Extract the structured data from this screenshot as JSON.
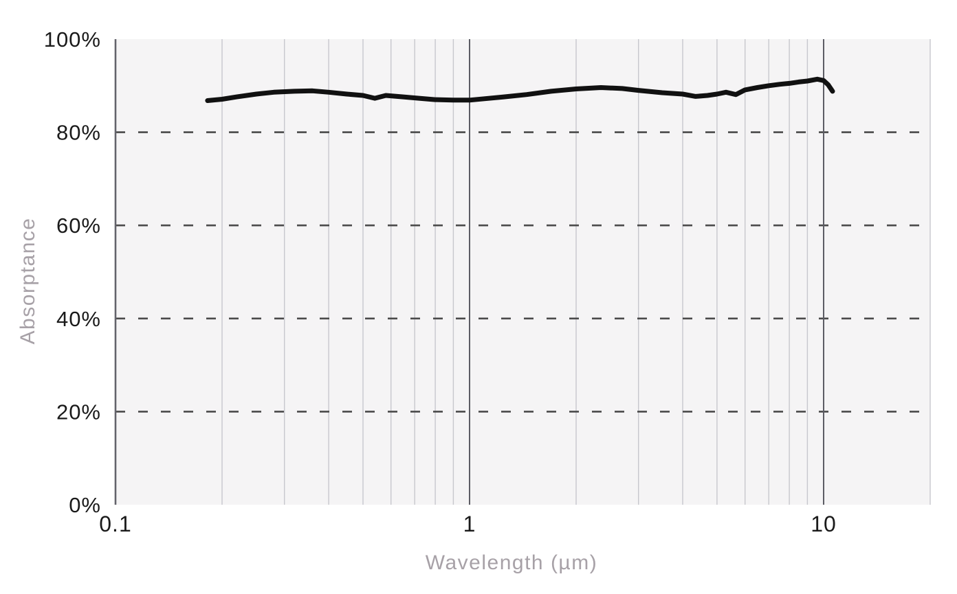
{
  "figure": {
    "background": "#ffffff"
  },
  "chart_data": {
    "type": "line",
    "title": "",
    "xlabel": "Wavelength (µm)",
    "ylabel": "Absorptance",
    "x_scale": "log",
    "xlim": [
      0.1,
      20
    ],
    "ylim": [
      0,
      100
    ],
    "grid": true,
    "legend_position": "none",
    "x_ticks": [
      {
        "value": 0.1,
        "label": "0.1"
      },
      {
        "value": 1,
        "label": "1"
      },
      {
        "value": 10,
        "label": "10"
      }
    ],
    "y_ticks": [
      {
        "value": 0,
        "label": "0%"
      },
      {
        "value": 20,
        "label": "20%"
      },
      {
        "value": 40,
        "label": "40%"
      },
      {
        "value": 60,
        "label": "60%"
      },
      {
        "value": 80,
        "label": "80%"
      },
      {
        "value": 100,
        "label": "100%"
      }
    ],
    "x_minor_gridlines": [
      0.2,
      0.3,
      0.4,
      0.5,
      0.6,
      0.7,
      0.8,
      0.9,
      2,
      3,
      4,
      5,
      6,
      7,
      8,
      9,
      20
    ],
    "x_major_gridlines": [
      1,
      10
    ],
    "y_dashed_gridlines": [
      20,
      40,
      60,
      80
    ],
    "series": [
      {
        "name": "Absorptance",
        "color": "#111111",
        "points": [
          [
            0.182,
            86.8
          ],
          [
            0.2,
            87.1
          ],
          [
            0.22,
            87.6
          ],
          [
            0.25,
            88.2
          ],
          [
            0.28,
            88.6
          ],
          [
            0.32,
            88.8
          ],
          [
            0.36,
            88.9
          ],
          [
            0.4,
            88.6
          ],
          [
            0.45,
            88.2
          ],
          [
            0.5,
            87.9
          ],
          [
            0.54,
            87.3
          ],
          [
            0.58,
            87.9
          ],
          [
            0.65,
            87.6
          ],
          [
            0.72,
            87.3
          ],
          [
            0.8,
            87.0
          ],
          [
            0.9,
            86.9
          ],
          [
            1.0,
            86.9
          ],
          [
            1.1,
            87.2
          ],
          [
            1.25,
            87.6
          ],
          [
            1.45,
            88.1
          ],
          [
            1.7,
            88.8
          ],
          [
            2.0,
            89.3
          ],
          [
            2.35,
            89.6
          ],
          [
            2.7,
            89.4
          ],
          [
            3.0,
            89.0
          ],
          [
            3.5,
            88.5
          ],
          [
            4.0,
            88.2
          ],
          [
            4.35,
            87.7
          ],
          [
            4.7,
            87.9
          ],
          [
            5.0,
            88.2
          ],
          [
            5.3,
            88.6
          ],
          [
            5.65,
            88.1
          ],
          [
            6.0,
            89.1
          ],
          [
            6.5,
            89.6
          ],
          [
            7.0,
            90.0
          ],
          [
            7.5,
            90.3
          ],
          [
            8.0,
            90.5
          ],
          [
            8.5,
            90.8
          ],
          [
            9.0,
            91.0
          ],
          [
            9.6,
            91.4
          ],
          [
            10.0,
            91.1
          ],
          [
            10.3,
            90.2
          ],
          [
            10.6,
            88.8
          ]
        ]
      }
    ],
    "colors": {
      "plot_background": "#f5f4f5",
      "minor_gridline": "#c7c7cd",
      "major_gridline": "#5c5c64",
      "axis_line": "#63636b",
      "dashed_gridline": "#4a4a4a",
      "tick_label": "#1a1a1a",
      "axis_title": "#a7a1a7",
      "line": "#111111"
    }
  }
}
